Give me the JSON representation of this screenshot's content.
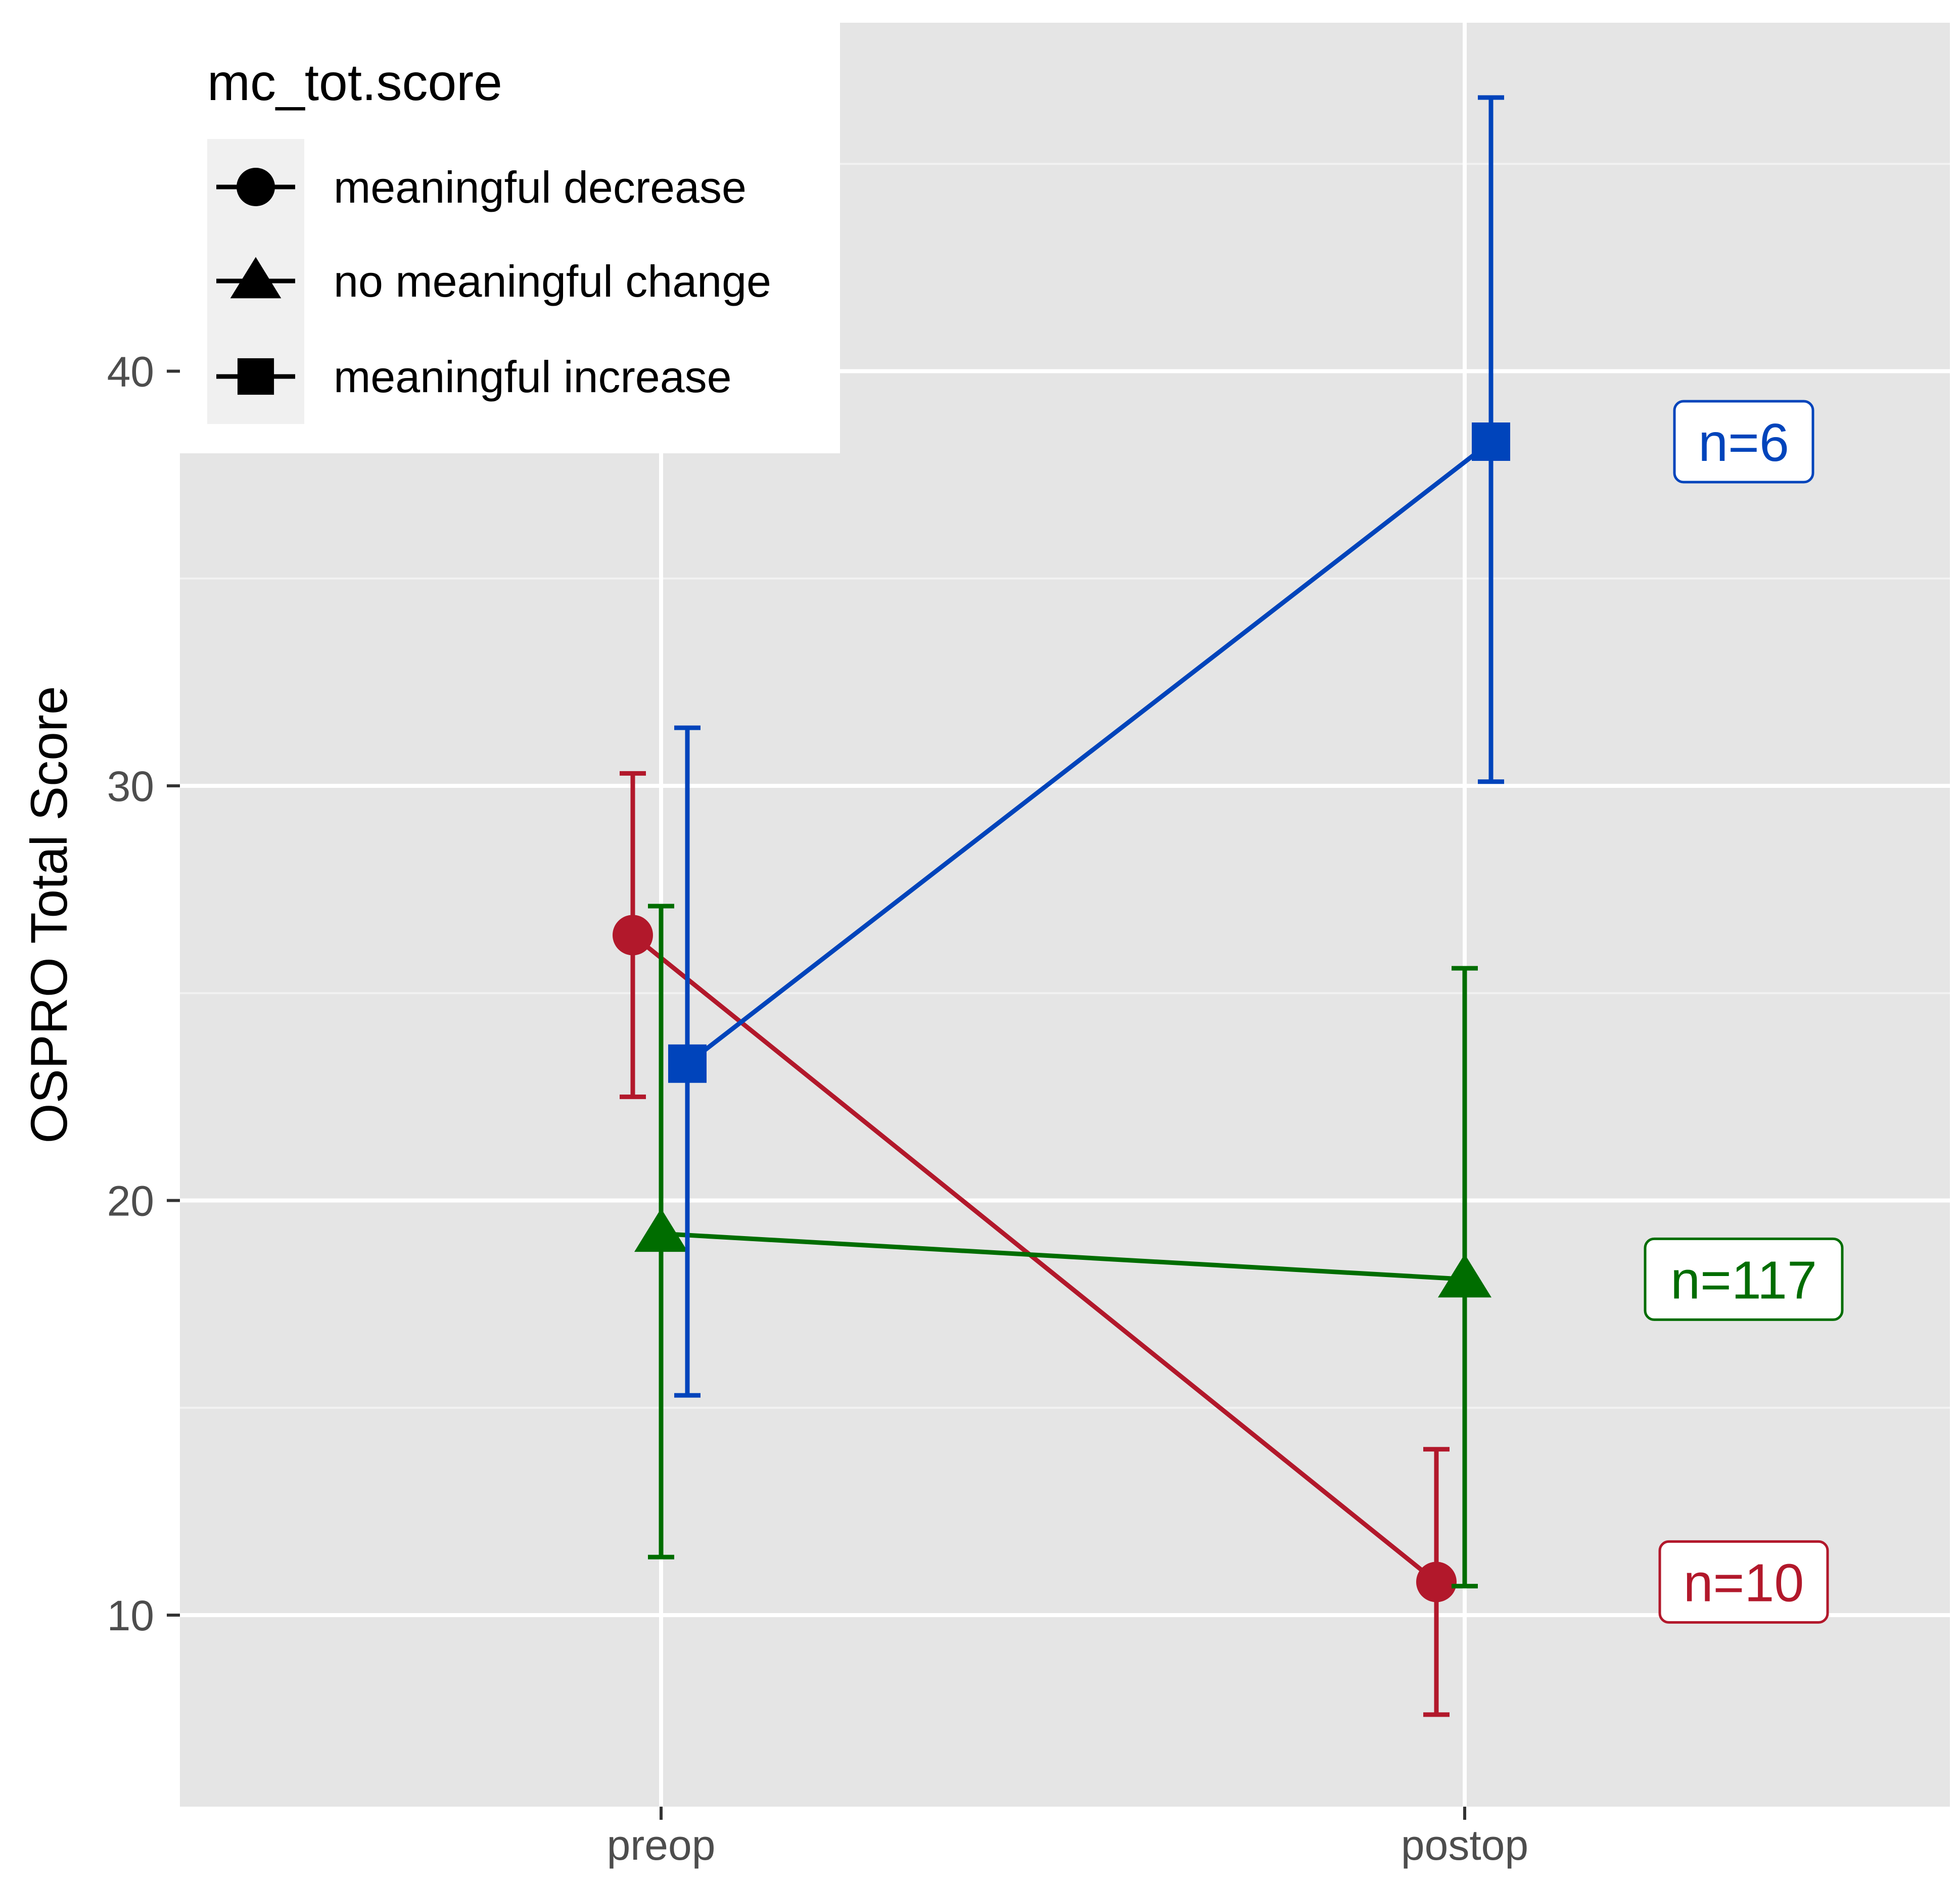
{
  "chart_data": {
    "type": "line",
    "title": "",
    "xlabel": "",
    "ylabel": "OSPRO Total Score",
    "categories": [
      "preop",
      "postop"
    ],
    "y_ticks": [
      "10",
      "20",
      "30",
      "40"
    ],
    "ylim": [
      5.6,
      48.5
    ],
    "grid": true,
    "legend": {
      "title": "mc_tot.score",
      "position": "top-left"
    },
    "series": [
      {
        "name": "meaningful decrease",
        "shape": "circle",
        "color": "#B2182B",
        "values": [
          26.4,
          10.8
        ],
        "error_low": [
          22.5,
          7.6
        ],
        "error_high": [
          30.3,
          14.0
        ],
        "n_label": "n=10",
        "n_label_at": 10.8
      },
      {
        "name": "no meaningful change",
        "shape": "triangle",
        "color": "#006D00",
        "values": [
          19.2,
          18.1
        ],
        "error_low": [
          11.4,
          10.7
        ],
        "error_high": [
          27.1,
          25.6
        ],
        "n_label": "n=117",
        "n_label_at": 18.1
      },
      {
        "name": "meaningful increase",
        "shape": "square",
        "color": "#0044BB",
        "values": [
          23.3,
          38.3
        ],
        "error_low": [
          15.3,
          30.1
        ],
        "error_high": [
          31.4,
          46.6
        ],
        "n_label": "n=6",
        "n_label_at": 38.3
      }
    ]
  }
}
